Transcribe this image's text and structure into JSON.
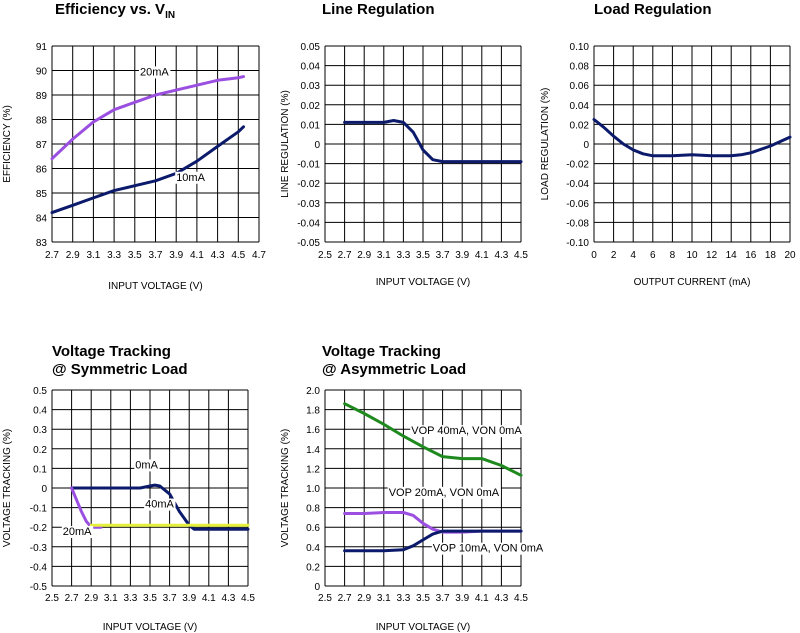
{
  "chart_data": [
    {
      "id": "efficiency",
      "type": "line",
      "title": "Efficiency vs. V",
      "title_sub": "IN",
      "xlabel": "INPUT VOLTAGE (V)",
      "ylabel": "EFFICIENCY (%)",
      "xlim": [
        2.7,
        4.7
      ],
      "ylim": [
        83,
        91
      ],
      "x_ticks": [
        "2.7",
        "2.9",
        "3.1",
        "3.3",
        "3.5",
        "3.7",
        "3.9",
        "4.1",
        "4.3",
        "4.5",
        "4.7"
      ],
      "y_ticks": [
        "83",
        "84",
        "85",
        "86",
        "87",
        "88",
        "89",
        "90",
        "91"
      ],
      "grid": true,
      "series": [
        {
          "name": "20mA",
          "color": "#9b4fe0",
          "x": [
            2.7,
            2.9,
            3.1,
            3.3,
            3.5,
            3.7,
            3.9,
            4.1,
            4.3,
            4.5,
            4.55
          ],
          "y": [
            86.4,
            87.2,
            87.9,
            88.4,
            88.7,
            89.0,
            89.2,
            89.4,
            89.6,
            89.7,
            89.75
          ]
        },
        {
          "name": "10mA",
          "color": "#0c1a6b",
          "x": [
            2.7,
            2.9,
            3.1,
            3.3,
            3.5,
            3.7,
            3.9,
            4.1,
            4.3,
            4.5,
            4.55
          ],
          "y": [
            84.2,
            84.5,
            84.8,
            85.1,
            85.3,
            85.5,
            85.8,
            86.3,
            86.9,
            87.5,
            87.7
          ]
        }
      ],
      "annotations": [
        {
          "text": "20mA",
          "x": 3.55,
          "y": 89.8
        },
        {
          "text": "10mA",
          "x": 3.9,
          "y": 85.5
        }
      ]
    },
    {
      "id": "line_regulation",
      "type": "line",
      "title": "Line Regulation",
      "xlabel": "INPUT VOLTAGE (V)",
      "ylabel": "LINE REGULATION (%)",
      "xlim": [
        2.5,
        4.5
      ],
      "ylim": [
        -0.05,
        0.05
      ],
      "x_ticks": [
        "2.5",
        "2.7",
        "2.9",
        "3.1",
        "3.3",
        "3.5",
        "3.7",
        "3.9",
        "4.1",
        "4.3",
        "4.5"
      ],
      "y_ticks": [
        "-0.05",
        "-0.04",
        "-0.03",
        "-0.02",
        "-0.01",
        "0",
        "0.01",
        "0.02",
        "0.03",
        "0.04",
        "0.05"
      ],
      "grid": true,
      "series": [
        {
          "name": "",
          "color": "#0c1a6b",
          "x": [
            2.7,
            2.9,
            3.1,
            3.2,
            3.3,
            3.4,
            3.5,
            3.6,
            3.7,
            3.9,
            4.1,
            4.3,
            4.5
          ],
          "y": [
            0.011,
            0.011,
            0.011,
            0.012,
            0.011,
            0.006,
            -0.003,
            -0.008,
            -0.009,
            -0.009,
            -0.009,
            -0.009,
            -0.009
          ]
        }
      ],
      "annotations": []
    },
    {
      "id": "load_regulation",
      "type": "line",
      "title": "Load Regulation",
      "xlabel": "OUTPUT CURRENT (mA)",
      "ylabel": "LOAD REGULATION (%)",
      "xlim": [
        0,
        20
      ],
      "ylim": [
        -0.1,
        0.1
      ],
      "x_ticks": [
        "0",
        "2",
        "4",
        "6",
        "8",
        "10",
        "12",
        "14",
        "16",
        "18",
        "20"
      ],
      "y_ticks": [
        "-0.10",
        "-0.08",
        "-0.06",
        "-0.04",
        "-0.02",
        "0",
        "0.02",
        "0.04",
        "0.06",
        "0.08",
        "0.10"
      ],
      "grid": true,
      "series": [
        {
          "name": "",
          "color": "#0c1a6b",
          "x": [
            0,
            1,
            2,
            3,
            4,
            5,
            6,
            8,
            10,
            12,
            14,
            15,
            16,
            18,
            20
          ],
          "y": [
            0.025,
            0.017,
            0.008,
            0.0,
            -0.006,
            -0.01,
            -0.012,
            -0.012,
            -0.011,
            -0.012,
            -0.012,
            -0.011,
            -0.009,
            -0.002,
            0.007
          ]
        }
      ],
      "annotations": []
    },
    {
      "id": "tracking_symmetric",
      "type": "line",
      "title": "Voltage Tracking",
      "title_line2": "@ Symmetric Load",
      "xlabel": "INPUT VOLTAGE (V)",
      "ylabel": "VOLTAGE TRACKING (%)",
      "xlim": [
        2.5,
        4.5
      ],
      "ylim": [
        -0.5,
        0.5
      ],
      "x_ticks": [
        "2.5",
        "2.7",
        "2.9",
        "3.1",
        "3.3",
        "3.5",
        "3.7",
        "3.9",
        "4.1",
        "4.3",
        "4.5"
      ],
      "x_tick_labels": [
        "2.5",
        "2.7",
        "2.9",
        "3.1",
        "3.3",
        "3.5",
        "3.7",
        "3.9",
        "4.1",
        "4.3",
        "4.5"
      ],
      "y_ticks": [
        "-0.5",
        "-0.4",
        "-0.3",
        "-0.2",
        "-0.1",
        "0",
        "0.1",
        "0.2",
        "0.3",
        "0.4",
        "0.5"
      ],
      "grid": true,
      "series": [
        {
          "name": "0mA",
          "color": "#0c1a6b",
          "x": [
            2.7,
            2.9,
            3.1,
            3.3,
            3.4,
            3.5,
            3.55,
            3.6,
            3.7,
            3.8,
            3.9,
            3.95,
            4.1,
            4.3,
            4.5
          ],
          "y": [
            0.0,
            0.0,
            0.0,
            0.0,
            0.0,
            0.01,
            0.015,
            0.01,
            -0.03,
            -0.12,
            -0.19,
            -0.21,
            -0.21,
            -0.21,
            -0.21
          ]
        },
        {
          "name": "20mA",
          "color": "#9b4fe0",
          "x": [
            2.7,
            2.75,
            2.8,
            2.85,
            2.9,
            2.95,
            3.0
          ],
          "y": [
            0.0,
            -0.06,
            -0.12,
            -0.17,
            -0.2,
            -0.2,
            -0.2
          ]
        },
        {
          "name": "40mA",
          "color": "#e6f03c",
          "x": [
            2.9,
            3.1,
            3.3,
            3.5,
            3.7,
            3.9,
            4.1,
            4.3,
            4.5
          ],
          "y": [
            -0.19,
            -0.19,
            -0.19,
            -0.19,
            -0.19,
            -0.19,
            -0.19,
            -0.19,
            -0.19
          ]
        }
      ],
      "annotations": [
        {
          "text": "0mA",
          "x": 3.35,
          "y": 0.1
        },
        {
          "text": "40mA",
          "x": 3.45,
          "y": -0.1
        },
        {
          "text": "20mA",
          "x": 2.61,
          "y": -0.24
        }
      ]
    },
    {
      "id": "tracking_asymmetric",
      "type": "line",
      "title": "Voltage Tracking",
      "title_line2": "@ Asymmetric Load",
      "xlabel": "INPUT VOLTAGE (V)",
      "ylabel": "VOLTAGE TRACKING (%)",
      "xlim": [
        2.5,
        4.5
      ],
      "ylim": [
        0,
        2.0
      ],
      "x_ticks": [
        "2.5",
        "2.7",
        "2.9",
        "3.1",
        "3.3",
        "3.5",
        "3.7",
        "3.9",
        "4.1",
        "4.3",
        "4.5"
      ],
      "y_ticks": [
        "0",
        "0.2",
        "0.4",
        "0.6",
        "0.8",
        "1.0",
        "1.2",
        "1.4",
        "1.6",
        "1.8",
        "2.0"
      ],
      "grid": true,
      "series": [
        {
          "name": "VOP 40mA, VON 0mA",
          "color": "#1e8a1e",
          "x": [
            2.7,
            2.9,
            3.1,
            3.3,
            3.5,
            3.7,
            3.9,
            4.1,
            4.3,
            4.5
          ],
          "y": [
            1.86,
            1.76,
            1.65,
            1.53,
            1.42,
            1.32,
            1.3,
            1.3,
            1.23,
            1.13
          ]
        },
        {
          "name": "VOP 20mA, VON 0mA",
          "color": "#9b4fe0",
          "x": [
            2.7,
            2.9,
            3.1,
            3.3,
            3.4,
            3.5,
            3.6,
            3.7,
            3.9,
            4.1,
            4.3,
            4.5
          ],
          "y": [
            0.74,
            0.74,
            0.75,
            0.75,
            0.72,
            0.64,
            0.58,
            0.55,
            0.55,
            0.56,
            0.56,
            0.56
          ]
        },
        {
          "name": "VOP 10mA, VON 0mA",
          "color": "#0c1a6b",
          "x": [
            2.7,
            2.9,
            3.1,
            3.3,
            3.4,
            3.5,
            3.6,
            3.7,
            3.9,
            4.1,
            4.3,
            4.5
          ],
          "y": [
            0.36,
            0.36,
            0.36,
            0.37,
            0.41,
            0.47,
            0.53,
            0.56,
            0.56,
            0.56,
            0.56,
            0.56
          ]
        }
      ],
      "annotations": [
        {
          "text": "VOP 40mA, VON 0mA",
          "x": 3.38,
          "y": 1.55
        },
        {
          "text": "VOP 20mA, VON 0mA",
          "x": 3.15,
          "y": 0.92
        },
        {
          "text": "VOP 10mA, VON 0mA",
          "x": 3.6,
          "y": 0.35
        }
      ]
    }
  ]
}
